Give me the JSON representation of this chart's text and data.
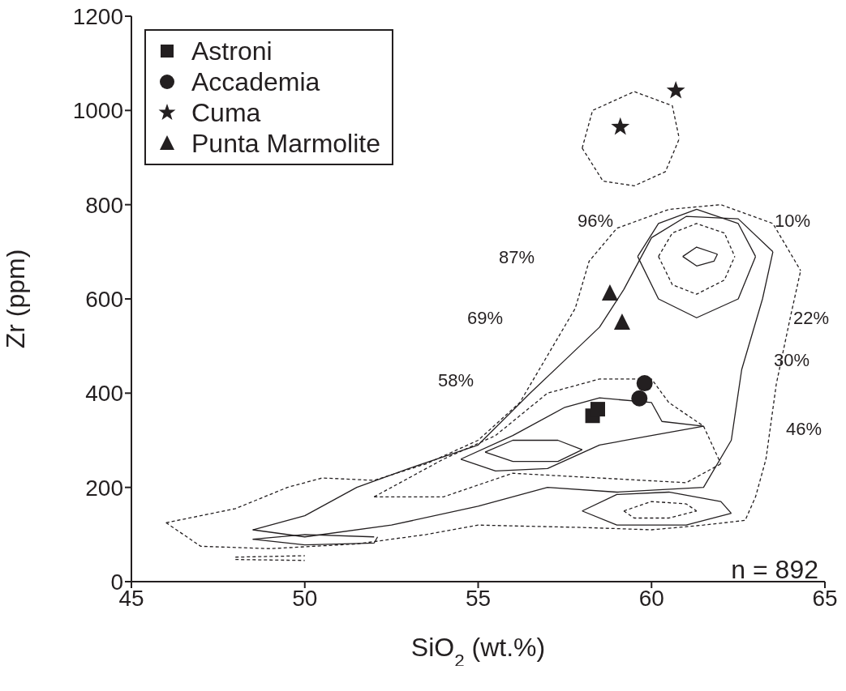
{
  "chart_data": {
    "type": "scatter",
    "xlabel": "SiO$_{2}$ (wt.%)",
    "ylabel": "Zr (ppm)",
    "xlim": [
      45,
      65
    ],
    "xticks": [
      45,
      50,
      55,
      60,
      65
    ],
    "ylim": [
      0,
      1200
    ],
    "yticks": [
      0,
      200,
      400,
      600,
      800,
      1000,
      1200
    ],
    "grid": false,
    "legend": "top left",
    "series": [
      {
        "name": "Astroni",
        "type": "scatter",
        "marker": "square",
        "color": "#231f20",
        "x": [
          58.3,
          58.45
        ],
        "values": [
          352,
          366
        ]
      },
      {
        "name": "Accademia",
        "type": "scatter",
        "marker": "circle",
        "color": "#231f20",
        "x": [
          59.8,
          59.65
        ],
        "values": [
          421,
          389
        ]
      },
      {
        "name": "Cuma",
        "type": "scatter",
        "marker": "star",
        "color": "#231f20",
        "x": [
          60.7,
          59.1
        ],
        "values": [
          1042,
          965
        ]
      },
      {
        "name": "Punta Marmolite",
        "type": "scatter",
        "marker": "triangle",
        "color": "#231f20",
        "x": [
          58.8,
          59.15
        ],
        "values": [
          612,
          550
        ]
      },
      {
        "type": "line",
        "line_style": "dashed",
        "color": "#231f20",
        "x": [
          58.0,
          58.3,
          59.5,
          60.6,
          60.8
        ],
        "values": [
          920,
          1000,
          1040,
          1010,
          940
        ]
      },
      {
        "type": "line",
        "line_style": "dashed",
        "color": "#231f20",
        "x": [
          58.0,
          58.6,
          59.5,
          60.4,
          60.8
        ],
        "values": [
          920,
          850,
          840,
          870,
          940
        ]
      },
      {
        "type": "line",
        "line_style": "dashed",
        "color": "#231f20",
        "x": [
          46,
          48,
          49.5,
          50.5,
          52,
          53.5,
          55,
          56.2,
          57,
          57.8,
          58.2,
          59,
          60.5,
          62,
          63.5,
          64.3
        ],
        "values": [
          125,
          155,
          200,
          220,
          215,
          250,
          300,
          380,
          480,
          580,
          680,
          750,
          790,
          800,
          760,
          660
        ]
      },
      {
        "type": "line",
        "line_style": "dashed",
        "color": "#231f20",
        "x": [
          46,
          47,
          49,
          51.5,
          53.5,
          55,
          58,
          60,
          61.5,
          62.7,
          63.0,
          63.3,
          63.6,
          64.0,
          64.3
        ],
        "values": [
          125,
          75,
          70,
          80,
          100,
          120,
          115,
          110,
          120,
          130,
          180,
          260,
          420,
          560,
          660
        ]
      },
      {
        "type": "line",
        "line_style": "solid",
        "color": "#231f20",
        "x": [
          48.5,
          50,
          51.5,
          53,
          55,
          56.5,
          57.5,
          58.5,
          59.2,
          60,
          61,
          62.5,
          63.5
        ],
        "values": [
          110,
          140,
          200,
          240,
          290,
          400,
          470,
          540,
          620,
          730,
          775,
          770,
          700
        ]
      },
      {
        "type": "line",
        "line_style": "solid",
        "color": "#231f20",
        "x": [
          48.5,
          50,
          52.5,
          55,
          57,
          59,
          61.5,
          62.3,
          62.6,
          63.2,
          63.5
        ],
        "values": [
          110,
          95,
          120,
          160,
          200,
          190,
          200,
          300,
          450,
          600,
          700
        ]
      },
      {
        "type": "line",
        "line_style": "dashed",
        "color": "#231f20",
        "x": [
          52,
          54,
          55.5,
          57,
          58.5,
          60,
          60.5,
          61.5,
          62
        ],
        "values": [
          180,
          260,
          310,
          400,
          430,
          430,
          380,
          330,
          250
        ]
      },
      {
        "type": "line",
        "line_style": "dashed",
        "color": "#231f20",
        "x": [
          52,
          54,
          56,
          58.5,
          61,
          62
        ],
        "values": [
          180,
          180,
          230,
          220,
          210,
          250
        ]
      },
      {
        "type": "line",
        "line_style": "solid",
        "color": "#231f20",
        "x": [
          54.5,
          56,
          57.5,
          58.5,
          60,
          60.3,
          61.5
        ],
        "values": [
          260,
          310,
          370,
          390,
          380,
          340,
          330
        ]
      },
      {
        "type": "line",
        "line_style": "solid",
        "color": "#231f20",
        "x": [
          54.5,
          55.5,
          57,
          58.5,
          60,
          61.5
        ],
        "values": [
          260,
          235,
          240,
          290,
          310,
          330
        ]
      },
      {
        "type": "line",
        "line_style": "solid",
        "color": "#231f20",
        "x": [
          59.6,
          60.2,
          61.3,
          62.5,
          63
        ],
        "values": [
          690,
          760,
          790,
          760,
          690
        ]
      },
      {
        "type": "line",
        "line_style": "solid",
        "color": "#231f20",
        "x": [
          59.6,
          60.2,
          61.3,
          62.5,
          63
        ],
        "values": [
          690,
          600,
          560,
          600,
          690
        ]
      },
      {
        "type": "line",
        "line_style": "dashed",
        "color": "#231f20",
        "x": [
          60.2,
          60.6,
          61.3,
          62.1,
          62.4
        ],
        "values": [
          690,
          740,
          760,
          740,
          690
        ]
      },
      {
        "type": "line",
        "line_style": "dashed",
        "color": "#231f20",
        "x": [
          60.2,
          60.6,
          61.3,
          62.1,
          62.4
        ],
        "values": [
          690,
          630,
          610,
          640,
          690
        ]
      },
      {
        "type": "line",
        "line_style": "solid",
        "color": "#231f20",
        "x": [
          60.9,
          61.3,
          61.9
        ],
        "values": [
          690,
          710,
          695
        ]
      },
      {
        "type": "line",
        "line_style": "solid",
        "color": "#231f20",
        "x": [
          60.9,
          61.3,
          61.8,
          61.9
        ],
        "values": [
          690,
          670,
          680,
          695
        ]
      },
      {
        "type": "line",
        "line_style": "solid",
        "color": "#231f20",
        "x": [
          58,
          59,
          60.5,
          62,
          62.3
        ],
        "values": [
          150,
          185,
          190,
          170,
          145
        ]
      },
      {
        "type": "line",
        "line_style": "solid",
        "color": "#231f20",
        "x": [
          58,
          59,
          61,
          62.3
        ],
        "values": [
          150,
          120,
          120,
          145
        ]
      },
      {
        "type": "line",
        "line_style": "dashed",
        "color": "#231f20",
        "x": [
          59.2,
          60,
          61,
          61.3
        ],
        "values": [
          150,
          170,
          165,
          150
        ]
      },
      {
        "type": "line",
        "line_style": "dashed",
        "color": "#231f20",
        "x": [
          59.2,
          59.5,
          60.5,
          61.3
        ],
        "values": [
          150,
          135,
          135,
          150
        ]
      },
      {
        "type": "line",
        "line_style": "solid",
        "color": "#231f20",
        "x": [
          55.2,
          56,
          57.3,
          58
        ],
        "values": [
          275,
          300,
          300,
          280
        ]
      },
      {
        "type": "line",
        "line_style": "solid",
        "color": "#231f20",
        "x": [
          55.2,
          56,
          57.3,
          58
        ],
        "values": [
          275,
          255,
          255,
          280
        ]
      },
      {
        "type": "line",
        "line_style": "solid",
        "color": "#231f20",
        "x": [
          48.5,
          50,
          52
        ],
        "values": [
          90,
          100,
          95
        ]
      },
      {
        "type": "line",
        "line_style": "solid",
        "color": "#231f20",
        "x": [
          48.5,
          50,
          52,
          52.1
        ],
        "values": [
          90,
          78,
          82,
          95
        ]
      },
      {
        "type": "line",
        "line_style": "dashed",
        "color": "#231f20",
        "x": [
          48,
          50
        ],
        "values": [
          52,
          55
        ]
      },
      {
        "type": "line",
        "line_style": "dashed",
        "color": "#231f20",
        "x": [
          48,
          50
        ],
        "values": [
          47,
          45
        ]
      }
    ],
    "annotations": [
      "96%",
      "10%",
      "87%",
      "69%",
      "22%",
      "30%",
      "58%",
      "46%",
      "n = 892"
    ]
  }
}
